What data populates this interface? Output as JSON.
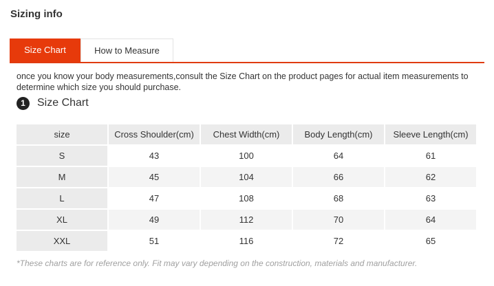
{
  "section_title": "Sizing info",
  "tabs": [
    {
      "label": "Size Chart",
      "active": true
    },
    {
      "label": "How to Measure",
      "active": false
    }
  ],
  "intro_text": "once you know your body measurements,consult the Size Chart on the product pages for actual item measurements to determine which size you should purchase.",
  "step": {
    "number": "1",
    "title": "Size Chart"
  },
  "table": {
    "headers": [
      "size",
      "Cross Shoulder(cm)",
      "Chest Width(cm)",
      "Body Length(cm)",
      "Sleeve Length(cm)"
    ],
    "rows": [
      [
        "S",
        "43",
        "100",
        "64",
        "61"
      ],
      [
        "M",
        "45",
        "104",
        "66",
        "62"
      ],
      [
        "L",
        "47",
        "108",
        "68",
        "63"
      ],
      [
        "XL",
        "49",
        "112",
        "70",
        "64"
      ],
      [
        "XXL",
        "51",
        "116",
        "72",
        "65"
      ]
    ]
  },
  "disclaimer": "*These charts are for reference only. Fit may vary depending on the construction, materials and manufacturer.",
  "colors": {
    "accent": "#e73a0b",
    "header_bg": "#ebebeb",
    "stripe_bg": "#f4f4f4",
    "disclaimer_text": "#a0a0a0"
  }
}
